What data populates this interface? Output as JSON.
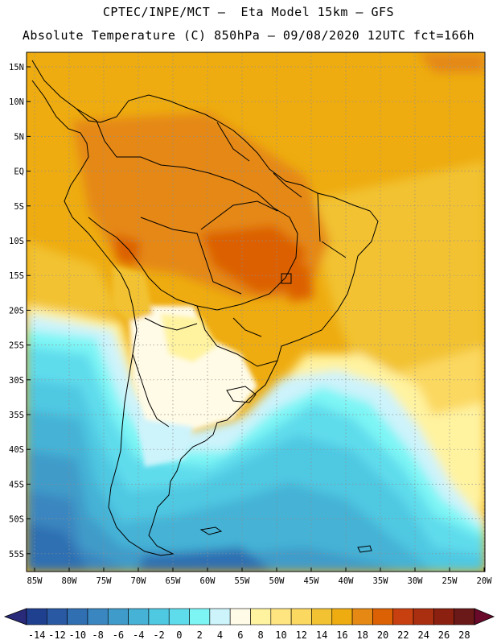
{
  "header": {
    "line1": "CPTEC/INPE/MCT –  Eta Model 15km – GFS",
    "line2": "Absolute Temperature (C) 850hPa – 09/08/2020 12UTC fct=166h"
  },
  "axes": {
    "lat_labels": [
      "15N",
      "10N",
      "5N",
      "EQ",
      "5S",
      "10S",
      "15S",
      "20S",
      "25S",
      "30S",
      "35S",
      "40S",
      "45S",
      "50S",
      "55S"
    ],
    "lon_labels": [
      "85W",
      "80W",
      "75W",
      "70W",
      "65W",
      "60W",
      "55W",
      "50W",
      "45W",
      "40W",
      "35W",
      "30W",
      "25W",
      "20W"
    ]
  },
  "colorbar": {
    "labels": [
      "-14",
      "-12",
      "-10",
      "-8",
      "-6",
      "-4",
      "-2",
      "0",
      "2",
      "4",
      "6",
      "8",
      "10",
      "12",
      "14",
      "16",
      "18",
      "20",
      "22",
      "24",
      "26",
      "28"
    ],
    "colors": [
      "#1f3f8f",
      "#2a59a4",
      "#2f6fb2",
      "#3a86c0",
      "#3f9bc9",
      "#45b2d6",
      "#4fc8e2",
      "#5fdcec",
      "#7df5f5",
      "#cdf3fb",
      "#fffbe6",
      "#fff3a0",
      "#ffe580",
      "#fbd860",
      "#f2c233",
      "#eeac10",
      "#e58814",
      "#dc6004",
      "#c84010",
      "#aa2e10",
      "#8b2010",
      "#6a1818"
    ]
  }
}
